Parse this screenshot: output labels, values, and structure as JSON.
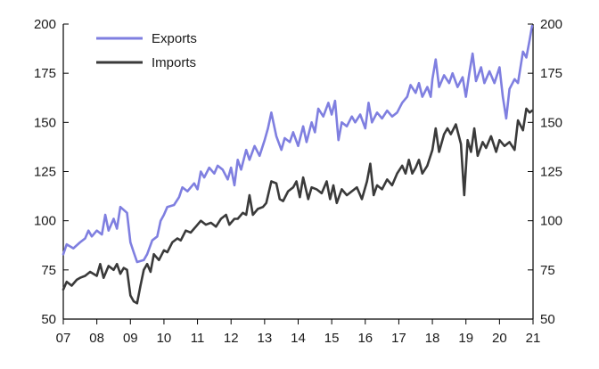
{
  "chart_data": {
    "type": "line",
    "title": "",
    "xlabel": "",
    "ylabel": "",
    "xlim": [
      2007.0,
      2021.0
    ],
    "ylim": [
      50,
      200
    ],
    "y_right_ylim": [
      50,
      200
    ],
    "y_ticks": [
      50,
      75,
      100,
      125,
      150,
      175,
      200
    ],
    "x_tick_labels": [
      "07",
      "08",
      "09",
      "10",
      "11",
      "12",
      "13",
      "14",
      "15",
      "16",
      "17",
      "18",
      "19",
      "20",
      "21"
    ],
    "x_tick_values": [
      2007,
      2008,
      2009,
      2010,
      2011,
      2012,
      2013,
      2014,
      2015,
      2016,
      2017,
      2018,
      2019,
      2020,
      2021
    ],
    "grid": false,
    "legend": "top-left",
    "series": [
      {
        "name": "Exports",
        "color": "#7f7fe0",
        "points": [
          [
            2007.0,
            83
          ],
          [
            2007.1,
            88
          ],
          [
            2007.3,
            86
          ],
          [
            2007.5,
            89
          ],
          [
            2007.65,
            91
          ],
          [
            2007.75,
            95
          ],
          [
            2007.85,
            92
          ],
          [
            2008.0,
            95
          ],
          [
            2008.15,
            93
          ],
          [
            2008.25,
            103
          ],
          [
            2008.35,
            95
          ],
          [
            2008.5,
            101
          ],
          [
            2008.6,
            96
          ],
          [
            2008.7,
            107
          ],
          [
            2008.9,
            104
          ],
          [
            2009.0,
            89
          ],
          [
            2009.1,
            84
          ],
          [
            2009.2,
            79
          ],
          [
            2009.4,
            80
          ],
          [
            2009.5,
            83
          ],
          [
            2009.65,
            90
          ],
          [
            2009.8,
            92
          ],
          [
            2009.9,
            100
          ],
          [
            2010.0,
            103
          ],
          [
            2010.1,
            107
          ],
          [
            2010.3,
            108
          ],
          [
            2010.45,
            112
          ],
          [
            2010.55,
            117
          ],
          [
            2010.7,
            115
          ],
          [
            2010.9,
            119
          ],
          [
            2011.0,
            116
          ],
          [
            2011.1,
            125
          ],
          [
            2011.2,
            122
          ],
          [
            2011.35,
            127
          ],
          [
            2011.5,
            124
          ],
          [
            2011.6,
            128
          ],
          [
            2011.75,
            126
          ],
          [
            2011.9,
            121
          ],
          [
            2012.0,
            127
          ],
          [
            2012.1,
            118
          ],
          [
            2012.2,
            131
          ],
          [
            2012.3,
            126
          ],
          [
            2012.45,
            136
          ],
          [
            2012.55,
            131
          ],
          [
            2012.7,
            138
          ],
          [
            2012.85,
            133
          ],
          [
            2013.0,
            141
          ],
          [
            2013.1,
            147
          ],
          [
            2013.2,
            155
          ],
          [
            2013.35,
            143
          ],
          [
            2013.5,
            136
          ],
          [
            2013.6,
            142
          ],
          [
            2013.75,
            140
          ],
          [
            2013.85,
            145
          ],
          [
            2014.0,
            138
          ],
          [
            2014.15,
            148
          ],
          [
            2014.25,
            140
          ],
          [
            2014.4,
            150
          ],
          [
            2014.5,
            145
          ],
          [
            2014.6,
            157
          ],
          [
            2014.75,
            153
          ],
          [
            2014.9,
            160
          ],
          [
            2015.0,
            154
          ],
          [
            2015.1,
            161
          ],
          [
            2015.2,
            141
          ],
          [
            2015.3,
            150
          ],
          [
            2015.45,
            148
          ],
          [
            2015.6,
            153
          ],
          [
            2015.7,
            150
          ],
          [
            2015.85,
            154
          ],
          [
            2016.0,
            147
          ],
          [
            2016.1,
            160
          ],
          [
            2016.2,
            150
          ],
          [
            2016.35,
            155
          ],
          [
            2016.5,
            152
          ],
          [
            2016.65,
            156
          ],
          [
            2016.8,
            153
          ],
          [
            2016.95,
            155
          ],
          [
            2017.1,
            160
          ],
          [
            2017.25,
            163
          ],
          [
            2017.35,
            169
          ],
          [
            2017.5,
            165
          ],
          [
            2017.6,
            170
          ],
          [
            2017.7,
            163
          ],
          [
            2017.85,
            168
          ],
          [
            2017.95,
            163
          ],
          [
            2018.0,
            172
          ],
          [
            2018.1,
            182
          ],
          [
            2018.2,
            168
          ],
          [
            2018.35,
            174
          ],
          [
            2018.5,
            170
          ],
          [
            2018.6,
            175
          ],
          [
            2018.75,
            168
          ],
          [
            2018.9,
            173
          ],
          [
            2019.0,
            163
          ],
          [
            2019.1,
            175
          ],
          [
            2019.2,
            185
          ],
          [
            2019.3,
            171
          ],
          [
            2019.45,
            178
          ],
          [
            2019.55,
            170
          ],
          [
            2019.7,
            176
          ],
          [
            2019.85,
            170
          ],
          [
            2020.0,
            178
          ],
          [
            2020.1,
            163
          ],
          [
            2020.2,
            152
          ],
          [
            2020.3,
            167
          ],
          [
            2020.45,
            172
          ],
          [
            2020.55,
            170
          ],
          [
            2020.7,
            186
          ],
          [
            2020.8,
            183
          ],
          [
            2020.9,
            192
          ],
          [
            2020.97,
            199
          ]
        ]
      },
      {
        "name": "Imports",
        "color": "#3a3a3a",
        "points": [
          [
            2007.0,
            65
          ],
          [
            2007.1,
            69
          ],
          [
            2007.25,
            67
          ],
          [
            2007.4,
            70
          ],
          [
            2007.5,
            71
          ],
          [
            2007.65,
            72
          ],
          [
            2007.8,
            74
          ],
          [
            2008.0,
            72
          ],
          [
            2008.1,
            78
          ],
          [
            2008.2,
            71
          ],
          [
            2008.35,
            77
          ],
          [
            2008.5,
            75
          ],
          [
            2008.6,
            78
          ],
          [
            2008.7,
            73
          ],
          [
            2008.8,
            76
          ],
          [
            2008.9,
            75
          ],
          [
            2009.0,
            62
          ],
          [
            2009.1,
            59
          ],
          [
            2009.2,
            58
          ],
          [
            2009.3,
            67
          ],
          [
            2009.4,
            75
          ],
          [
            2009.5,
            78
          ],
          [
            2009.6,
            74
          ],
          [
            2009.7,
            83
          ],
          [
            2009.85,
            80
          ],
          [
            2010.0,
            85
          ],
          [
            2010.1,
            84
          ],
          [
            2010.25,
            89
          ],
          [
            2010.4,
            91
          ],
          [
            2010.5,
            90
          ],
          [
            2010.65,
            95
          ],
          [
            2010.8,
            94
          ],
          [
            2010.95,
            97
          ],
          [
            2011.1,
            100
          ],
          [
            2011.25,
            98
          ],
          [
            2011.4,
            99
          ],
          [
            2011.55,
            97
          ],
          [
            2011.7,
            101
          ],
          [
            2011.85,
            103
          ],
          [
            2011.95,
            98
          ],
          [
            2012.1,
            101
          ],
          [
            2012.2,
            101
          ],
          [
            2012.35,
            104
          ],
          [
            2012.45,
            103
          ],
          [
            2012.55,
            113
          ],
          [
            2012.65,
            103
          ],
          [
            2012.8,
            106
          ],
          [
            2012.95,
            107
          ],
          [
            2013.05,
            109
          ],
          [
            2013.2,
            120
          ],
          [
            2013.35,
            119
          ],
          [
            2013.45,
            111
          ],
          [
            2013.55,
            110
          ],
          [
            2013.7,
            115
          ],
          [
            2013.85,
            117
          ],
          [
            2013.95,
            120
          ],
          [
            2014.05,
            112
          ],
          [
            2014.15,
            122
          ],
          [
            2014.3,
            111
          ],
          [
            2014.4,
            117
          ],
          [
            2014.55,
            116
          ],
          [
            2014.7,
            114
          ],
          [
            2014.85,
            120
          ],
          [
            2014.95,
            111
          ],
          [
            2015.05,
            118
          ],
          [
            2015.15,
            109
          ],
          [
            2015.3,
            116
          ],
          [
            2015.45,
            113
          ],
          [
            2015.6,
            115
          ],
          [
            2015.75,
            117
          ],
          [
            2015.9,
            111
          ],
          [
            2016.05,
            120
          ],
          [
            2016.15,
            129
          ],
          [
            2016.25,
            113
          ],
          [
            2016.35,
            118
          ],
          [
            2016.5,
            116
          ],
          [
            2016.65,
            121
          ],
          [
            2016.8,
            118
          ],
          [
            2016.95,
            124
          ],
          [
            2017.1,
            128
          ],
          [
            2017.2,
            124
          ],
          [
            2017.3,
            131
          ],
          [
            2017.4,
            124
          ],
          [
            2017.5,
            127
          ],
          [
            2017.6,
            131
          ],
          [
            2017.7,
            124
          ],
          [
            2017.85,
            128
          ],
          [
            2018.0,
            136
          ],
          [
            2018.1,
            147
          ],
          [
            2018.2,
            135
          ],
          [
            2018.35,
            144
          ],
          [
            2018.45,
            147
          ],
          [
            2018.55,
            144
          ],
          [
            2018.7,
            149
          ],
          [
            2018.85,
            139
          ],
          [
            2018.95,
            113
          ],
          [
            2019.05,
            141
          ],
          [
            2019.15,
            135
          ],
          [
            2019.25,
            147
          ],
          [
            2019.35,
            133
          ],
          [
            2019.5,
            140
          ],
          [
            2019.6,
            137
          ],
          [
            2019.75,
            143
          ],
          [
            2019.9,
            135
          ],
          [
            2020.0,
            141
          ],
          [
            2020.15,
            138
          ],
          [
            2020.3,
            140
          ],
          [
            2020.45,
            136
          ],
          [
            2020.55,
            151
          ],
          [
            2020.7,
            146
          ],
          [
            2020.8,
            157
          ],
          [
            2020.9,
            155
          ],
          [
            2020.97,
            156
          ]
        ]
      }
    ]
  }
}
